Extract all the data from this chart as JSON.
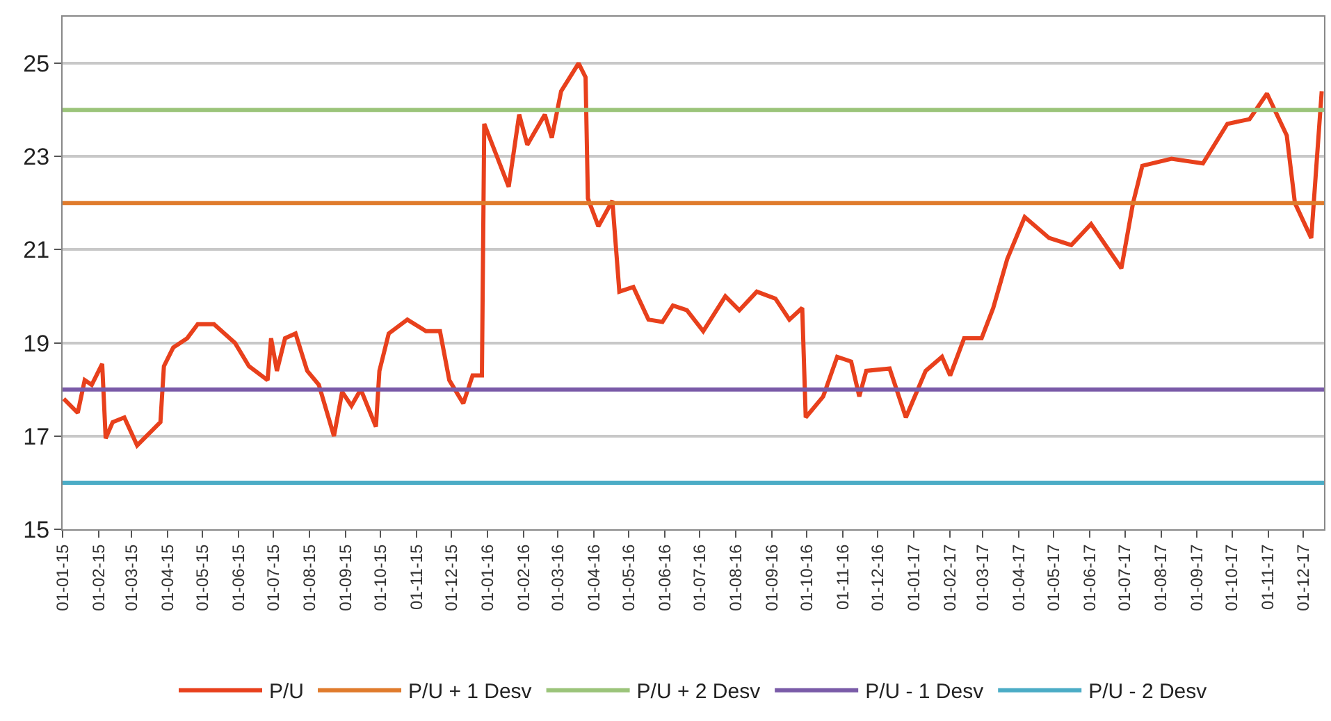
{
  "chart_data": {
    "type": "line",
    "xlim": [
      "2015-01-01",
      "2017-12-19"
    ],
    "ylim": [
      15,
      26
    ],
    "yticks": [
      15,
      17,
      19,
      21,
      23,
      25
    ],
    "xticks": [
      {
        "value": "2015-01-01",
        "label": "01-01-15"
      },
      {
        "value": "2015-02-01",
        "label": "01-02-15"
      },
      {
        "value": "2015-03-01",
        "label": "01-03-15"
      },
      {
        "value": "2015-04-01",
        "label": "01-04-15"
      },
      {
        "value": "2015-05-01",
        "label": "01-05-15"
      },
      {
        "value": "2015-06-01",
        "label": "01-06-15"
      },
      {
        "value": "2015-07-01",
        "label": "01-07-15"
      },
      {
        "value": "2015-08-01",
        "label": "01-08-15"
      },
      {
        "value": "2015-09-01",
        "label": "01-09-15"
      },
      {
        "value": "2015-10-01",
        "label": "01-10-15"
      },
      {
        "value": "2015-11-01",
        "label": "01-11-15"
      },
      {
        "value": "2015-12-01",
        "label": "01-12-15"
      },
      {
        "value": "2016-01-01",
        "label": "01-01-16"
      },
      {
        "value": "2016-02-01",
        "label": "01-02-16"
      },
      {
        "value": "2016-03-01",
        "label": "01-03-16"
      },
      {
        "value": "2016-04-01",
        "label": "01-04-16"
      },
      {
        "value": "2016-05-01",
        "label": "01-05-16"
      },
      {
        "value": "2016-06-01",
        "label": "01-06-16"
      },
      {
        "value": "2016-07-01",
        "label": "01-07-16"
      },
      {
        "value": "2016-08-01",
        "label": "01-08-16"
      },
      {
        "value": "2016-09-01",
        "label": "01-09-16"
      },
      {
        "value": "2016-10-01",
        "label": "01-10-16"
      },
      {
        "value": "2016-11-01",
        "label": "01-11-16"
      },
      {
        "value": "2016-12-01",
        "label": "01-12-16"
      },
      {
        "value": "2017-01-01",
        "label": "01-01-17"
      },
      {
        "value": "2017-02-01",
        "label": "01-02-17"
      },
      {
        "value": "2017-03-01",
        "label": "01-03-17"
      },
      {
        "value": "2017-04-01",
        "label": "01-04-17"
      },
      {
        "value": "2017-05-01",
        "label": "01-05-17"
      },
      {
        "value": "2017-06-01",
        "label": "01-06-17"
      },
      {
        "value": "2017-07-01",
        "label": "01-07-17"
      },
      {
        "value": "2017-08-01",
        "label": "01-08-17"
      },
      {
        "value": "2017-09-01",
        "label": "01-09-17"
      },
      {
        "value": "2017-10-01",
        "label": "01-10-17"
      },
      {
        "value": "2017-11-01",
        "label": "01-11-17"
      },
      {
        "value": "2017-12-01",
        "label": "01-12-17"
      }
    ],
    "grid": "y",
    "legend": "bottom",
    "marker": "none",
    "line_style": "solid",
    "series": [
      {
        "name": "P/U",
        "color": "#e8401c",
        "x": [
          "2015-01-02",
          "2015-01-14",
          "2015-01-20",
          "2015-01-26",
          "2015-02-04",
          "2015-02-07",
          "2015-02-13",
          "2015-02-23",
          "2015-03-06",
          "2015-03-18",
          "2015-03-26",
          "2015-03-29",
          "2015-04-06",
          "2015-04-18",
          "2015-04-27",
          "2015-05-11",
          "2015-05-29",
          "2015-06-10",
          "2015-06-26",
          "2015-06-29",
          "2015-07-04",
          "2015-07-11",
          "2015-07-20",
          "2015-07-30",
          "2015-08-09",
          "2015-08-22",
          "2015-08-29",
          "2015-09-06",
          "2015-09-14",
          "2015-09-27",
          "2015-09-30",
          "2015-10-08",
          "2015-10-24",
          "2015-11-09",
          "2015-11-21",
          "2015-11-29",
          "2015-12-11",
          "2015-12-19",
          "2015-12-27",
          "2015-12-29",
          "2016-01-05",
          "2016-01-19",
          "2016-01-28",
          "2016-02-04",
          "2016-02-19",
          "2016-02-25",
          "2016-03-04",
          "2016-03-19",
          "2016-03-25",
          "2016-03-27",
          "2016-04-05",
          "2016-04-17",
          "2016-04-23",
          "2016-05-05",
          "2016-05-18",
          "2016-05-30",
          "2016-06-08",
          "2016-06-20",
          "2016-07-04",
          "2016-07-23",
          "2016-08-04",
          "2016-08-19",
          "2016-09-04",
          "2016-09-16",
          "2016-09-27",
          "2016-09-30",
          "2016-10-15",
          "2016-10-27",
          "2016-11-08",
          "2016-11-15",
          "2016-11-21",
          "2016-12-11",
          "2016-12-25",
          "2017-01-11",
          "2017-01-25",
          "2017-02-01",
          "2017-02-13",
          "2017-02-28",
          "2017-03-10",
          "2017-03-22",
          "2017-04-06",
          "2017-04-27",
          "2017-05-16",
          "2017-06-02",
          "2017-06-28",
          "2017-07-08",
          "2017-07-16",
          "2017-08-10",
          "2017-09-06",
          "2017-09-27",
          "2017-10-16",
          "2017-10-31",
          "2017-11-17",
          "2017-11-24",
          "2017-12-08",
          "2017-12-17"
        ],
        "values": [
          17.8,
          17.5,
          18.2,
          18.1,
          18.55,
          16.95,
          17.3,
          17.4,
          16.8,
          17.1,
          17.3,
          18.5,
          18.9,
          19.1,
          19.4,
          19.4,
          19.0,
          18.5,
          18.2,
          19.1,
          18.4,
          19.1,
          19.2,
          18.4,
          18.1,
          17.0,
          17.95,
          17.65,
          18.0,
          17.2,
          18.4,
          19.2,
          19.5,
          19.25,
          19.25,
          18.2,
          17.7,
          18.3,
          18.3,
          23.7,
          23.25,
          22.35,
          23.9,
          23.25,
          23.9,
          23.4,
          24.4,
          25.0,
          24.7,
          22.1,
          21.5,
          22.05,
          20.1,
          20.2,
          19.5,
          19.45,
          19.8,
          19.7,
          19.25,
          20.0,
          19.7,
          20.1,
          19.95,
          19.5,
          19.75,
          17.4,
          17.85,
          18.7,
          18.6,
          17.85,
          18.4,
          18.45,
          17.4,
          18.4,
          18.7,
          18.3,
          19.1,
          19.1,
          19.75,
          20.8,
          21.7,
          21.25,
          21.1,
          21.55,
          20.6,
          22.0,
          22.8,
          22.95,
          22.85,
          23.7,
          23.8,
          24.35,
          23.45,
          22.0,
          21.25,
          24.4
        ]
      },
      {
        "name": "P/U + 1 Desv",
        "color": "#e07b2c",
        "x": [
          "2015-01-01",
          "2017-12-19"
        ],
        "values": [
          22,
          22
        ]
      },
      {
        "name": "P/U + 2 Desv",
        "color": "#9bc47a",
        "x": [
          "2015-01-01",
          "2017-12-19"
        ],
        "values": [
          24,
          24
        ]
      },
      {
        "name": "P/U - 1 Desv",
        "color": "#7a5ba8",
        "x": [
          "2015-01-01",
          "2017-12-19"
        ],
        "values": [
          18,
          18
        ]
      },
      {
        "name": "P/U - 2 Desv",
        "color": "#4bacc6",
        "x": [
          "2015-01-01",
          "2017-12-19"
        ],
        "values": [
          16,
          16
        ]
      }
    ]
  }
}
